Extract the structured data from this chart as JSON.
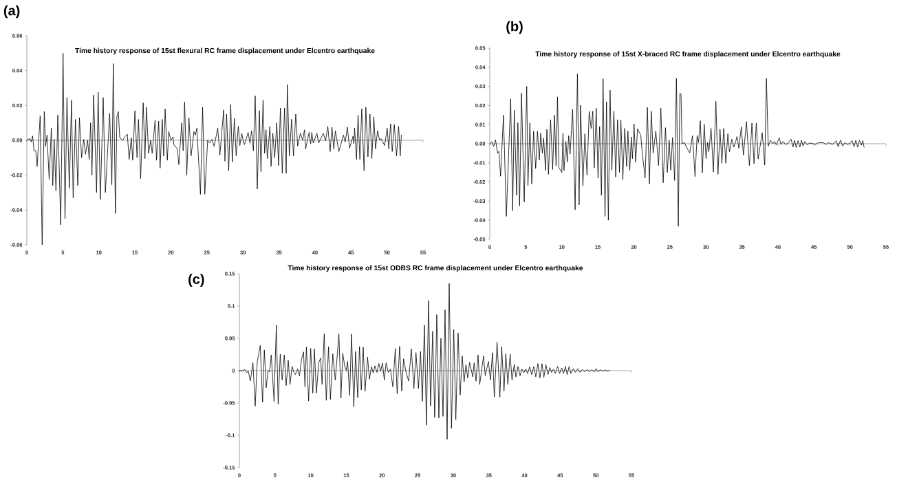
{
  "chart_data": [
    {
      "type": "line",
      "title": "Time history response of 15st flexural RC frame displacement under Elcentro earthquake",
      "annotations": [
        "(a)"
      ],
      "color": "#000000",
      "x": [
        0,
        0.4,
        0.6,
        0.8,
        1.0,
        1.24,
        1.43,
        1.85,
        2.13,
        2.42,
        2.6,
        2.8,
        3.1,
        3.4,
        3.6,
        3.8,
        4.04,
        4.3,
        4.7,
        5.03,
        5.3,
        5.57,
        5.9,
        6.2,
        6.43,
        6.75,
        7.07,
        7.3,
        7.6,
        7.9,
        8.15,
        8.44,
        8.66,
        8.85,
        9.04,
        9.27,
        9.68,
        9.9,
        10.2,
        10.6,
        10.9,
        11.5,
        11.8,
        12.0,
        12.3,
        12.5,
        12.7,
        12.9,
        13.3,
        13.6,
        13.95,
        14.2,
        14.5,
        14.7,
        15.0,
        15.3,
        15.5,
        15.8,
        16.15,
        16.4,
        16.6,
        16.9,
        17.2,
        17.4,
        17.8,
        18.0,
        18.3,
        18.5,
        18.8,
        19.0,
        19.2,
        19.5,
        19.7,
        20.0,
        20.3,
        20.4,
        20.9,
        21.1,
        21.5,
        21.7,
        21.9,
        22.2,
        22.5,
        22.8,
        23.2,
        23.4,
        23.6,
        24.1,
        24.4,
        24.7,
        25.1,
        25.4,
        25.7,
        26.0,
        26.5,
        26.8,
        27.32,
        27.5,
        27.73,
        28.02,
        28.3,
        28.52,
        28.81,
        29.06,
        29.35,
        29.57,
        29.83,
        30.02,
        30.21,
        30.72,
        30.97,
        31.2,
        31.45,
        31.7,
        31.99,
        32.28,
        32.5,
        32.79,
        33.01,
        33.2,
        33.39,
        33.74,
        33.9,
        34.15,
        34.41,
        34.69,
        34.95,
        35.2,
        35.46,
        35.77,
        36.0,
        36.16,
        36.44,
        36.76,
        37.01,
        37.33,
        37.59,
        37.97,
        38.29,
        38.54,
        38.7,
        39.18,
        39.4,
        39.56,
        39.75,
        40.26,
        40.51,
        41.15,
        41.47,
        41.78,
        42.1,
        42.36,
        42.61,
        42.83,
        43.31,
        43.95,
        44.2,
        44.49,
        44.8,
        45.28,
        45.4,
        45.5,
        45.76,
        45.98,
        46.23,
        46.49,
        46.81,
        47.06,
        47.35,
        47.63,
        47.89,
        48.17,
        48.4,
        48.68,
        48.97,
        49.16,
        49.67,
        50.02,
        50.24,
        50.5,
        50.72,
        51.01,
        51.32,
        51.61,
        51.83,
        51.99
      ],
      "values": [
        0,
        0.001,
        -0.001,
        0.0025,
        -0.006,
        -0.006,
        -0.015,
        0.014,
        -0.06,
        0.0165,
        -0.0035,
        0.003,
        -0.0225,
        0.007,
        -0.026,
        0.0005,
        -0.029,
        0.0145,
        -0.0485,
        0.05,
        -0.045,
        0.0245,
        -0.0275,
        0.023,
        -0.033,
        0.012,
        -0.026,
        0.013,
        -0.01,
        0.0005,
        -0.008,
        0,
        -0.011,
        0.01,
        -0.02,
        0.026,
        -0.03,
        0.0275,
        -0.034,
        0.0245,
        -0.03,
        0.0155,
        -0.0255,
        0.044,
        -0.042,
        0.0135,
        0.0165,
        0.0015,
        0,
        0.002,
        0.0035,
        -0.011,
        0.0015,
        -0.0115,
        0.017,
        -0.01,
        0.012,
        -0.022,
        0.0215,
        -0.0105,
        0.019,
        -0.0075,
        0,
        -0.0075,
        0.0115,
        -0.0115,
        0.011,
        -0.016,
        0.012,
        -0.009,
        0.018,
        -0.0115,
        0.005,
        0,
        0.002,
        -0.0025,
        -0.005,
        -0.014,
        0.01,
        -0.006,
        0.022,
        -0.02,
        0.013,
        -0.009,
        0.005,
        0.003,
        0.007,
        -0.031,
        0.019,
        -0.031,
        0,
        -0.0015,
        0.0005,
        -0.0035,
        0.007,
        -0.0085,
        0.0175,
        -0.012,
        0.015,
        -0.0175,
        0.0205,
        -0.0125,
        0.0125,
        -0.009,
        0.008,
        -0.003,
        0.004,
        0,
        -0.0025,
        0.0045,
        -0.0017,
        0.0055,
        -0.006,
        0.0255,
        -0.028,
        0.017,
        -0.018,
        0.023,
        -0.0075,
        0.006,
        -0.0105,
        0.008,
        -0.015,
        0.004,
        -0.01,
        0.01,
        -0.0145,
        0.0185,
        -0.019,
        0.0185,
        -0.019,
        0.032,
        -0.009,
        0.012,
        -0.009,
        0.015,
        -0.0033,
        0.004,
        0,
        0.006,
        -0.005,
        0.0045,
        -0.002,
        0.0045,
        -0.0016,
        0.004,
        -0.0016,
        0.004,
        -0.0003,
        0.008,
        -0.0065,
        0.0075,
        -0.005,
        0.0055,
        -0.0065,
        0.003,
        -0.001,
        0.0075,
        -0.0045,
        0.0023,
        -0.002,
        0.007,
        -0.011,
        0.0145,
        -0.011,
        0.018,
        -0.0175,
        0.019,
        -0.0095,
        0.015,
        -0.0105,
        0.0135,
        -0.005,
        0.0055,
        0,
        0.001,
        -0.003,
        0.007,
        -0.005,
        0.0095,
        -0.0065,
        0.009,
        -0.009,
        0.008,
        -0.009,
        0.003
      ],
      "xlim": [
        0,
        55
      ],
      "xticks": [
        0,
        5,
        10,
        15,
        20,
        25,
        30,
        35,
        40,
        45,
        50,
        55
      ],
      "ylim": [
        -0.06,
        0.06
      ],
      "yticks": [
        -0.06,
        -0.04,
        -0.02,
        {
          "value": 0,
          "label": "0.00"
        },
        0.02,
        0.04,
        0.06
      ]
    },
    {
      "type": "line",
      "title": "Time history response of 15st X-braced RC frame displacement under Elcentro earthquake",
      "annotations": [
        "(b)"
      ],
      "color": "#000000",
      "x": [
        0,
        0.3,
        0.54,
        0.8,
        1.08,
        1.27,
        1.5,
        1.9,
        2.3,
        2.9,
        3.18,
        3.4,
        3.73,
        3.9,
        4.14,
        4.4,
        4.78,
        5.13,
        5.3,
        5.57,
        5.83,
        6.08,
        6.37,
        6.62,
        6.88,
        7.07,
        7.3,
        7.48,
        7.74,
        7.93,
        8.15,
        8.44,
        8.73,
        8.98,
        9.2,
        9.4,
        9.6,
        10.0,
        10.16,
        10.3,
        10.57,
        10.76,
        10.95,
        11.15,
        11.5,
        11.85,
        12.17,
        12.4,
        12.6,
        12.93,
        13.2,
        13.5,
        13.8,
        14.07,
        14.3,
        14.5,
        14.78,
        15.03,
        15.25,
        15.5,
        15.73,
        16.0,
        16.2,
        16.46,
        16.7,
        16.94,
        17.23,
        17.48,
        17.74,
        18.0,
        18.2,
        18.47,
        18.73,
        19.0,
        19.17,
        19.43,
        19.65,
        19.8,
        20.03,
        20.25,
        20.51,
        20.96,
        21.15,
        21.56,
        21.88,
        22.16,
        22.42,
        22.68,
        23.05,
        23.43,
        23.75,
        24.07,
        24.39,
        24.64,
        24.9,
        25.12,
        25.37,
        25.66,
        25.91,
        26.17,
        26.39,
        26.55,
        26.68,
        27.03,
        27.28,
        27.76,
        28.14,
        28.49,
        28.78,
        28.97,
        29.23,
        29.51,
        29.77,
        30.02,
        30.24,
        30.4,
        30.72,
        31.04,
        31.39,
        31.68,
        31.96,
        32.22,
        32.47,
        32.76,
        33.05,
        33.27,
        33.59,
        33.87,
        34.1,
        34.32,
        34.57,
        34.92,
        35.21,
        35.63,
        36.04,
        36.39,
        36.68,
        37.0,
        37.25,
        37.82,
        38.17,
        38.4,
        38.65,
        38.97,
        39.29,
        39.54,
        39.76,
        40.18,
        40.43,
        40.72,
        41.04,
        41.39,
        41.83,
        42.09,
        42.31,
        42.53,
        42.79,
        43.04,
        43.27,
        43.49,
        43.74,
        44.06,
        44.38,
        44.86,
        45.21,
        45.59,
        46.29,
        46.67,
        47.02,
        47.56,
        48.11,
        48.36,
        48.68,
        48.99,
        49.32,
        49.63,
        49.95,
        50.3,
        50.56,
        50.81,
        51.07,
        51.32,
        51.58,
        51.77,
        51.96
      ],
      "values": [
        0,
        0.001,
        -0.0015,
        0.002,
        -0.005,
        -0.004,
        -0.017,
        0.015,
        -0.038,
        0.0235,
        -0.035,
        0.0175,
        -0.027,
        0.011,
        -0.0325,
        0.0265,
        -0.0305,
        0.03,
        -0.022,
        0.011,
        -0.021,
        0.0065,
        -0.013,
        0.0065,
        -0.0085,
        0.0055,
        -0.005,
        0.0028,
        -0.014,
        0.0075,
        -0.016,
        0.0125,
        -0.0135,
        0.015,
        -0.0115,
        0.0245,
        -0.0125,
        -0.015,
        0.0055,
        -0.014,
        0.0012,
        -0.0096,
        0.0042,
        -0.0054,
        0.018,
        -0.0345,
        0.0365,
        -0.032,
        0.0201,
        -0.022,
        0.0052,
        -0.0165,
        0.017,
        0.008,
        0.017,
        -0.0126,
        0.0186,
        -0.018,
        0.009,
        -0.027,
        0.034,
        -0.038,
        0.022,
        -0.04,
        0.028,
        -0.0138,
        0.017,
        -0.0174,
        0.0126,
        -0.015,
        0.0124,
        -0.0188,
        0.008,
        -0.012,
        0.0066,
        -0.014,
        0.0036,
        -0.0078,
        0.0104,
        -0.0096,
        0.0078,
        0.0044,
        -0.004,
        -0.018,
        0.019,
        -0.021,
        0.017,
        -0.005,
        0.0066,
        -0.0114,
        0.0186,
        -0.0204,
        0.0084,
        -0.015,
        0.0018,
        -0.0138,
        0.0032,
        -0.0192,
        0.0342,
        -0.0432,
        0.0264,
        0.026,
        0,
        0.0006,
        -0.0016,
        -0.0048,
        0.0042,
        -0.0172,
        0.0042,
        0.0006,
        0.012,
        -0.0152,
        0.0102,
        -0.0078,
        0.0006,
        -0.0042,
        0.008,
        -0.0148,
        0.0222,
        -0.016,
        0.0076,
        -0.0102,
        0.008,
        -0.0102,
        0.0052,
        -0.0042,
        0.0024,
        -0.0018,
        0.0006,
        0.0038,
        -0.0024,
        0.0088,
        -0.006,
        0.0116,
        -0.0114,
        0.0108,
        -0.0104,
        0.0108,
        -0.008,
        0.0058,
        -0.0112,
        0.0342,
        -0.0012,
        0.0018,
        0,
        0.0012,
        -0.0006,
        0.003,
        -0.0004,
        0.0012,
        -0.0004,
        0.0002,
        0.0024,
        -0.0018,
        0.0018,
        -0.002,
        0.0016,
        -0.0018,
        0.0018,
        -0.0012,
        0.0012,
        -0.0006,
        0.0004,
        0,
        -0.0004,
        0.0006,
        0.0006,
        -0.0004,
        0.0006,
        -0.0004,
        0.0016,
        -0.0016,
        0.0018,
        -0.0012,
        0.0006,
        -0.0004,
        0.0002,
        0.0016,
        -0.0016,
        0.0018,
        -0.0018,
        0.0018,
        -0.0008,
        0.0016,
        -0.0018
      ],
      "xlim": [
        0,
        55
      ],
      "xticks": [
        0,
        5,
        10,
        15,
        20,
        25,
        30,
        35,
        40,
        45,
        50,
        55
      ],
      "ylim": [
        -0.05,
        0.05
      ],
      "yticks": [
        -0.05,
        -0.04,
        -0.03,
        -0.02,
        -0.01,
        {
          "value": 0,
          "label": "0.00"
        },
        0.01,
        0.02,
        0.03,
        0.04,
        0.05
      ]
    },
    {
      "type": "line",
      "title": "Time history response of 15st ODBS RC frame displacement under Elcentro earthquake",
      "annotations": [
        "(c)"
      ],
      "color": "#000000",
      "x": [
        0,
        0.5,
        0.77,
        1.0,
        1.25,
        1.54,
        1.9,
        2.22,
        2.5,
        2.93,
        3.25,
        3.5,
        3.76,
        4.02,
        4.25,
        4.47,
        4.86,
        5.18,
        5.44,
        5.73,
        6.0,
        6.3,
        6.56,
        6.85,
        7.1,
        7.4,
        7.59,
        7.85,
        8.17,
        8.43,
        8.72,
        9.0,
        9.2,
        9.4,
        9.71,
        10.0,
        10.3,
        10.52,
        10.8,
        11.13,
        11.4,
        11.6,
        11.9,
        12.19,
        12.5,
        12.77,
        13.1,
        13.45,
        13.96,
        14.25,
        14.5,
        14.76,
        14.99,
        15.18,
        15.47,
        15.73,
        16.05,
        16.3,
        16.6,
        16.85,
        17.1,
        17.37,
        17.63,
        17.98,
        18.24,
        18.53,
        18.78,
        19.0,
        19.3,
        19.56,
        19.81,
        20.07,
        20.33,
        20.58,
        20.9,
        21.2,
        21.52,
        21.87,
        22.13,
        22.48,
        22.77,
        23.03,
        23.35,
        23.74,
        24.12,
        24.48,
        24.77,
        25.12,
        25.41,
        25.67,
        25.95,
        26.24,
        26.53,
        26.82,
        27.11,
        27.4,
        27.69,
        27.98,
        28.27,
        28.56,
        28.85,
        29.14,
        29.43,
        29.75,
        30.07,
        30.36,
        30.68,
        30.97,
        31.26,
        31.52,
        31.78,
        32.03,
        32.29,
        32.74,
        32.93,
        33.19,
        33.48,
        33.71,
        34.25,
        34.48,
        34.93,
        35.22,
        35.51,
        35.76,
        36.15,
        36.54,
        36.79,
        37.12,
        37.37,
        37.66,
        37.98,
        38.24,
        38.56,
        38.79,
        39.08,
        39.37,
        39.62,
        39.91,
        40.17,
        40.43,
        40.72,
        41.01,
        41.3,
        41.58,
        41.87,
        42.16,
        42.45,
        42.71,
        43.0,
        43.29,
        43.55,
        43.8,
        44.06,
        44.32,
        44.64,
        44.9,
        45.22,
        45.48,
        45.73,
        45.99,
        46.25,
        46.5,
        46.83,
        47.15,
        47.47,
        47.79,
        48.11,
        48.43,
        48.82,
        49.08,
        49.4,
        49.79,
        50.04,
        50.3,
        50.62,
        50.94,
        51.26,
        51.59,
        51.91
      ],
      "values": [
        0,
        0,
        0.0017,
        -0.003,
        -0.001,
        -0.016,
        0.012,
        -0.055,
        0.013,
        0.039,
        -0.049,
        0.032,
        -0.0265,
        0,
        -0.002,
        0.0245,
        -0.0475,
        0.0705,
        -0.052,
        0.0255,
        -0.0145,
        0.0245,
        -0.023,
        0.016,
        -0.0215,
        0.0065,
        -0.001,
        -0.006,
        0.0024,
        -0.008,
        0.0177,
        0.029,
        -0.025,
        0.0365,
        -0.047,
        0.0345,
        -0.035,
        0.0337,
        -0.035,
        0.0126,
        0.0194,
        -0.0214,
        0.0568,
        -0.046,
        0.037,
        -0.0445,
        0.026,
        -0.0146,
        0.0568,
        -0.0425,
        0.027,
        0.0075,
        0.0007,
        0.0143,
        -0.0384,
        0.0568,
        -0.056,
        0.0296,
        -0.0418,
        0.037,
        -0.03,
        0.0364,
        -0.032,
        0.021,
        -0.013,
        0.0058,
        -0.0037,
        0.0075,
        -0.0027,
        0.011,
        -0.001,
        0.012,
        -0.0146,
        0.012,
        -0.0027,
        0.0024,
        -0.025,
        0.0343,
        -0.0357,
        0.0377,
        -0.0316,
        0.0184,
        -0.001,
        -0.016,
        0.0337,
        -0.0275,
        0.028,
        -0.0275,
        0.0296,
        -0.0473,
        0.0704,
        -0.0843,
        0.1085,
        -0.0544,
        0.0609,
        -0.0724,
        0.0867,
        -0.0734,
        0.05,
        -0.0707,
        0.0942,
        -0.1064,
        0.135,
        -0.0894,
        0.0636,
        -0.0758,
        0.0585,
        -0.0377,
        0.0228,
        -0.0173,
        0.0092,
        -0.0112,
        0.0126,
        -0.0095,
        0.0119,
        -0.0163,
        0.0245,
        -0.0214,
        0.0228,
        -0.0078,
        0.0143,
        -0.0146,
        0.0279,
        -0.0408,
        0.0439,
        -0.0408,
        0.037,
        -0.0316,
        0.0262,
        -0.0214,
        0.0255,
        -0.0146,
        0.0099,
        -0.0095,
        0.0065,
        -0.0078,
        0.0024,
        -0.0027,
        0.0024,
        -0.0044,
        0.0058,
        -0.0061,
        0.0065,
        -0.0095,
        0.0109,
        -0.0112,
        0.0109,
        -0.0102,
        0.0092,
        -0.0061,
        0.0048,
        -0.0027,
        0.0024,
        -0.0044,
        0.0065,
        -0.0044,
        0.0041,
        -0.0044,
        0.0065,
        -0.0061,
        0.0065,
        -0.0044,
        0.0031,
        -0.0027,
        0.0031,
        -0.0027,
        0.0017,
        -0.0017,
        0.0017,
        -0.0017,
        0.0014,
        -0.0017,
        0.0031,
        -0.0017,
        0.0014,
        -0.001,
        0.0014,
        -0.001,
        0.0003
      ],
      "xlim": [
        0,
        55
      ],
      "xticks": [
        0,
        5,
        10,
        15,
        20,
        25,
        30,
        35,
        40,
        45,
        50,
        55
      ],
      "ylim": [
        -0.15,
        0.15
      ],
      "yticks": [
        -0.15,
        -0.1,
        -0.05,
        0,
        0.05,
        0.1,
        0.15
      ]
    }
  ]
}
